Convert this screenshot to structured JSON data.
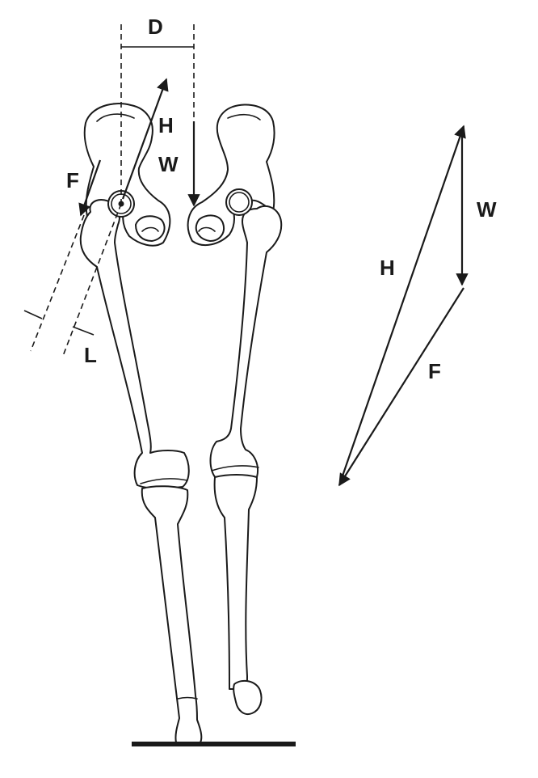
{
  "labels": {
    "moment_arm_body": "D",
    "moment_arm_abductor": "L",
    "hip_force_leg": "H",
    "body_weight_leg": "W",
    "abductor_force_leg": "F",
    "hip_force_triangle": "H",
    "body_weight_triangle": "W",
    "abductor_force_triangle": "F"
  },
  "colors": {
    "ink": "#1a1a1a",
    "background": "#ffffff"
  }
}
